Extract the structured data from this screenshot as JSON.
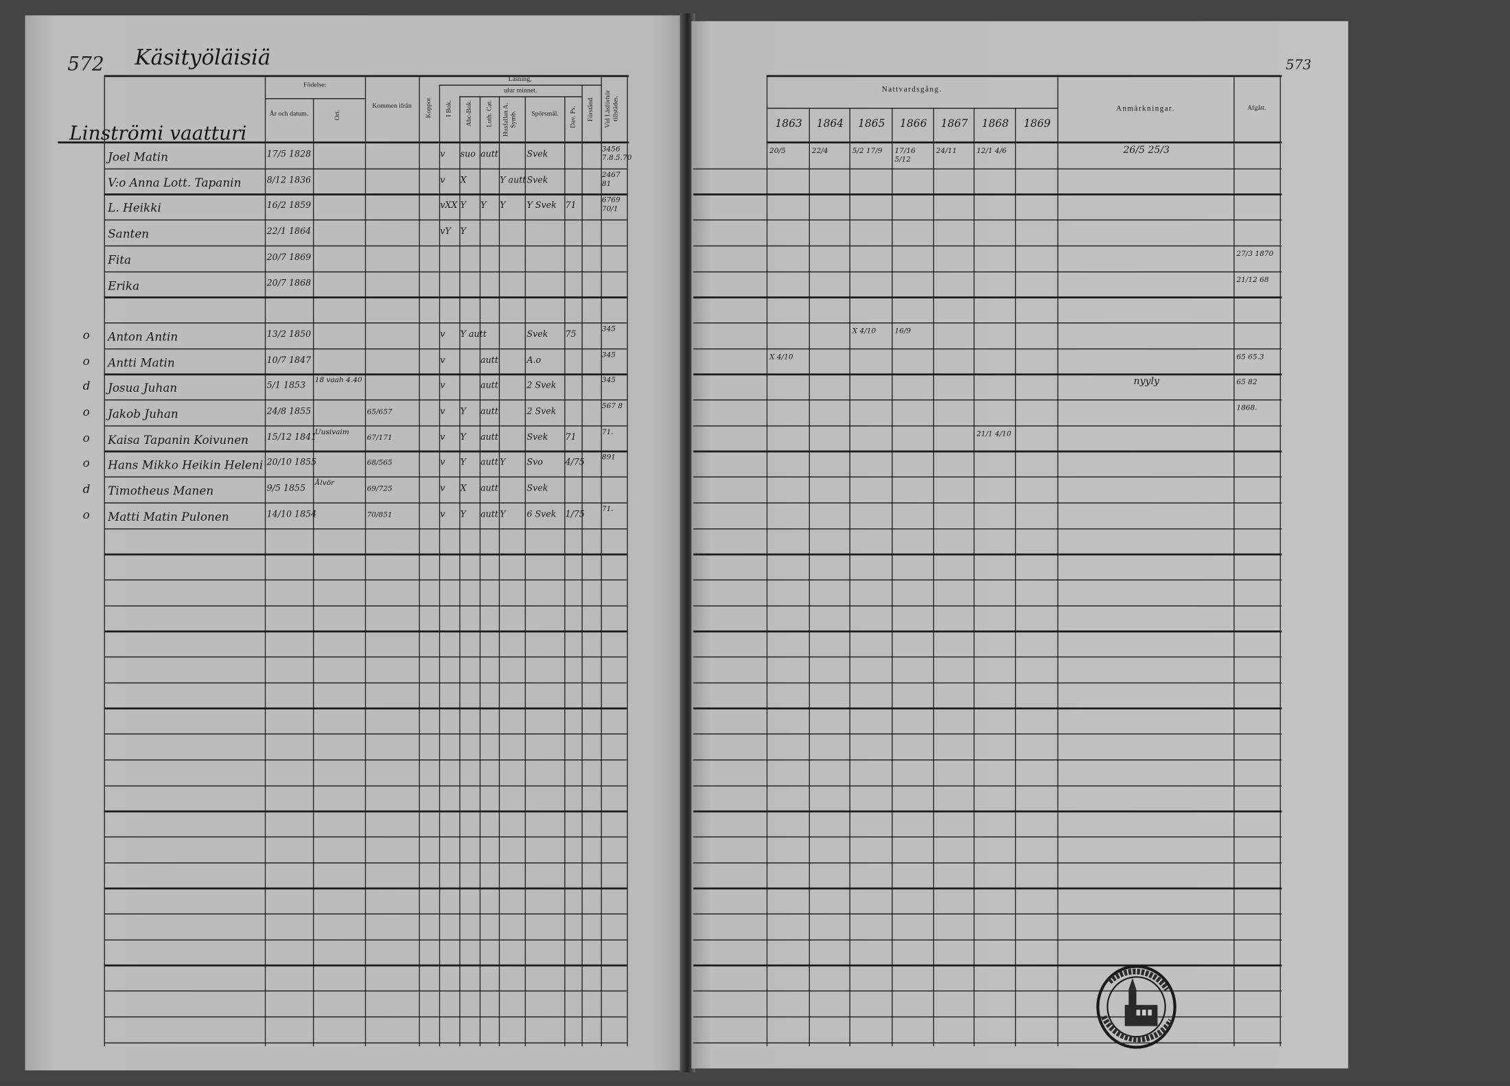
{
  "left_page": {
    "page_number": "572",
    "title": "Käsityöläisiä",
    "household": "Linströmi vaatturi",
    "headers": {
      "birth": "Födelse:",
      "birth_date": "År och datum.",
      "birth_place": "Ort.",
      "came_from": "Kommen ifrån",
      "smallpox": "Koppor.",
      "reading": "Läsning,",
      "by_heart": "ulur minnet.",
      "in_book": "I Bok.",
      "abc_book": "Abc-Bok.",
      "luth_cat": "Luth. Cat.",
      "household_table": "Husfallan A. Symb.",
      "questions": "Spörsmål.",
      "dav_ps": "Dav. Ps.",
      "understanding": "Förstånd.",
      "examination": "Vid Läsförhör tillstädes."
    },
    "rows": [
      {
        "name": "Joel Matin",
        "date": "17/5 1828",
        "ibok": "v",
        "abc": "suo",
        "luth": "autt",
        "spors": "Svek",
        "vid": "3456 7.8.5.70"
      },
      {
        "name": "V:o Anna Lott. Tapanin",
        "date": "8/12 1836",
        "ibok": "v",
        "abc": "X",
        "husfl": "Y autt",
        "spors": "Svek",
        "vid": "2467 81"
      },
      {
        "name": "L. Heikki",
        "date": "16/2 1859",
        "ibok": "vXX",
        "abc": "Y",
        "luth": "Y",
        "husfl": "Y",
        "spors": "Y Svek",
        "dav": "71",
        "vid": "6769 70/1"
      },
      {
        "name": "Santen",
        "date": "22/1 1864",
        "ibok": "vY",
        "abc": "Y"
      },
      {
        "name": "Fita",
        "date": "20/7 1869"
      },
      {
        "name": "Erika",
        "date": "20/7 1868"
      },
      {
        "name": ""
      },
      {
        "mark": "o",
        "name": "Anton Antin",
        "date": "13/2 1850",
        "ibok": "v",
        "abc": "Y autt",
        "spors": "Svek",
        "dav": "75",
        "vid": "345"
      },
      {
        "mark": "o",
        "name": "Antti Matin",
        "date": "10/7 1847",
        "ibok": "v",
        "luth": "autt",
        "spors": "A.o",
        "vid": "345"
      },
      {
        "mark": "d",
        "name": "Josua Juhan",
        "date": "5/1 1853",
        "ort": "18 vaah 4.40",
        "ibok": "v",
        "luth": "autt",
        "spors": "2 Svek",
        "vid": "345"
      },
      {
        "mark": "o",
        "name": "Jakob Juhan",
        "date": "24/8 1855",
        "kommen": "65/657",
        "ibok": "v",
        "abc": "Y",
        "luth": "autt",
        "spors": "2 Svek",
        "vid": "567 8"
      },
      {
        "mark": "o",
        "name": "Kaisa Tapanin Koivunen",
        "date": "15/12 1841",
        "ort": "Uusivaim",
        "kommen": "67/171",
        "ibok": "v",
        "abc": "Y",
        "luth": "autt",
        "spors": "Svek",
        "dav": "71",
        "vid": "71."
      },
      {
        "mark": "o",
        "name": "Hans Mikko Heikin Heleni",
        "date": "20/10 1855",
        "kommen": "68/565",
        "ibok": "v",
        "abc": "Y",
        "luth": "autt",
        "husfl": "Y",
        "spors": "Svo",
        "dav": "4/75",
        "vid": "891"
      },
      {
        "mark": "d",
        "name": "Timotheus Manen",
        "date": "9/5 1855",
        "ort": "Ålvör",
        "kommen": "69/725",
        "ibok": "v",
        "abc": "X",
        "luth": "autt",
        "spors": "Svek",
        "vid": ""
      },
      {
        "mark": "o",
        "name": "Matti Matin Pulonen",
        "date": "14/10 1854",
        "kommen": "70/851",
        "ibok": "v",
        "abc": "Y",
        "luth": "autt",
        "husfl": "Y",
        "spors": "6 Svek",
        "dav": "1/75",
        "vid": "71."
      }
    ]
  },
  "right_page": {
    "page_number": "573",
    "headers": {
      "communion": "Nattvardsgång.",
      "years": [
        "1863",
        "1864",
        "1865",
        "1866",
        "1867",
        "1868",
        "1869"
      ],
      "remarks": "Anmärkningar.",
      "departed": "Afgått."
    },
    "rows": [
      {
        "y1863": "20/5",
        "y1864": "22/4",
        "y1865": "5/2 17/9",
        "y1866": "17/16 5/12",
        "y1867": "24/11",
        "y1868": "12/1 4/6",
        "anm": "26/5   25/3"
      },
      {},
      {},
      {},
      {
        "afg": "27/3 1870"
      },
      {
        "afg": "21/12 68"
      },
      {},
      {
        "y1865": "X 4/10",
        "y1866": "16/9"
      },
      {
        "y1863": "X 4/10",
        "afg": "65 65.3"
      },
      {
        "anm": "nyyly",
        "afg": "65 82"
      },
      {
        "afg": "1868."
      },
      {
        "y1868": "21/1 4/10"
      },
      {},
      {},
      {}
    ]
  },
  "stamp": {
    "text": "DIOECESISARCHIVET I ULEÅBORG"
  }
}
